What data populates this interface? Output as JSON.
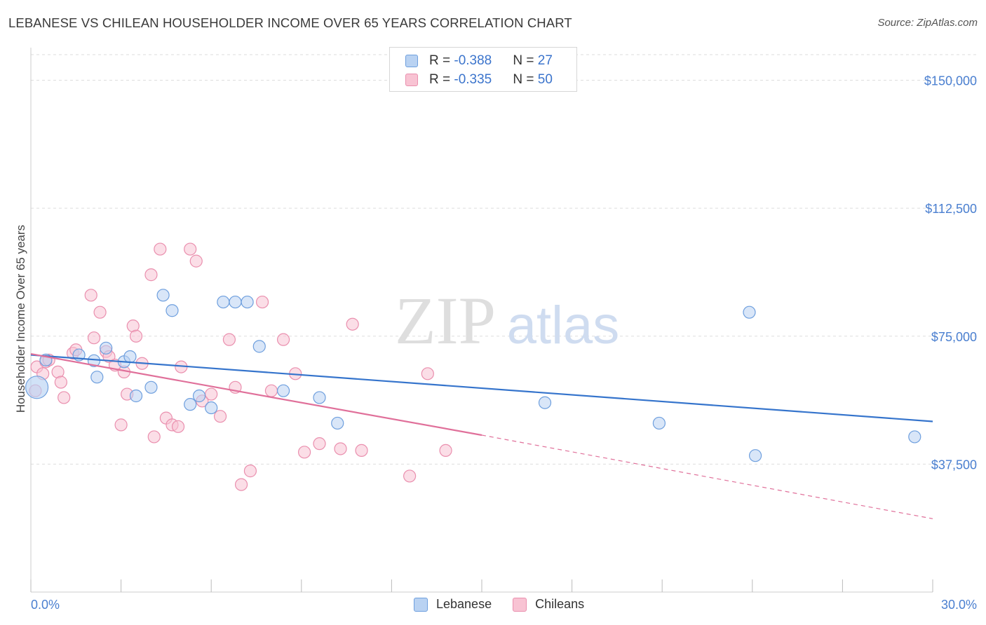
{
  "title": "LEBANESE VS CHILEAN HOUSEHOLDER INCOME OVER 65 YEARS CORRELATION CHART",
  "source": "Source: ZipAtlas.com",
  "watermark": {
    "zip": "ZIP",
    "atlas": "atlas"
  },
  "legend": {
    "lebanese": {
      "r_label": "R = ",
      "r_value": "-0.388",
      "n_label": "N = ",
      "n_value": "27"
    },
    "chileans": {
      "r_label": "R = ",
      "r_value": "-0.335",
      "n_label": "N = ",
      "n_value": "50"
    }
  },
  "bottom_legend": {
    "lebanese": "Lebanese",
    "chileans": "Chileans"
  },
  "colors": {
    "lebanese_fill": "#b9d2f2",
    "lebanese_stroke": "#6e9fde",
    "lebanese_line": "#3574cc",
    "chileans_fill": "#f8c3d3",
    "chileans_stroke": "#ea8fae",
    "chileans_line": "#e0709a",
    "tick_text": "#4a7fd0",
    "grid": "#dddddd"
  },
  "chart_data": {
    "type": "scatter",
    "title": "LEBANESE VS CHILEAN HOUSEHOLDER INCOME OVER 65 YEARS CORRELATION CHART",
    "xlabel": "",
    "ylabel": "Householder Income Over 65 years",
    "xlim": [
      0,
      30
    ],
    "ylim": [
      0,
      157500
    ],
    "x_tick_labels": [
      "0.0%",
      "30.0%"
    ],
    "y_ticks": [
      37500,
      75000,
      112500,
      150000
    ],
    "y_tick_labels": [
      "$37,500",
      "$75,000",
      "$112,500",
      "$150,000"
    ],
    "grid": "horizontal dashed",
    "legend_position": "top-center",
    "series": [
      {
        "name": "Lebanese",
        "points": [
          [
            0.2,
            60000
          ],
          [
            0.5,
            68000
          ],
          [
            1.6,
            69500
          ],
          [
            2.1,
            67800
          ],
          [
            2.2,
            63000
          ],
          [
            2.5,
            71500
          ],
          [
            3.1,
            67500
          ],
          [
            3.3,
            69000
          ],
          [
            3.5,
            57500
          ],
          [
            4.0,
            60000
          ],
          [
            4.4,
            87000
          ],
          [
            4.7,
            82500
          ],
          [
            5.3,
            55000
          ],
          [
            5.6,
            57500
          ],
          [
            6.0,
            54000
          ],
          [
            6.4,
            85000
          ],
          [
            6.8,
            85000
          ],
          [
            7.2,
            85000
          ],
          [
            7.6,
            72000
          ],
          [
            8.4,
            59000
          ],
          [
            9.6,
            57000
          ],
          [
            10.2,
            49500
          ],
          [
            17.1,
            55500
          ],
          [
            20.9,
            49500
          ],
          [
            23.9,
            82000
          ],
          [
            24.1,
            40000
          ],
          [
            29.4,
            45500
          ]
        ],
        "trend": {
          "x0": 0.0,
          "y0": 69500,
          "x1": 30.0,
          "y1": 50000
        }
      },
      {
        "name": "Chileans",
        "points": [
          [
            0.2,
            66000
          ],
          [
            0.4,
            64000
          ],
          [
            0.5,
            67500
          ],
          [
            0.6,
            68000
          ],
          [
            0.9,
            64500
          ],
          [
            1.0,
            61500
          ],
          [
            1.1,
            57000
          ],
          [
            1.4,
            70000
          ],
          [
            1.5,
            71000
          ],
          [
            2.0,
            87000
          ],
          [
            2.1,
            74500
          ],
          [
            2.3,
            82000
          ],
          [
            2.5,
            70500
          ],
          [
            2.6,
            69000
          ],
          [
            2.8,
            66500
          ],
          [
            3.0,
            49000
          ],
          [
            3.1,
            64500
          ],
          [
            3.2,
            58000
          ],
          [
            3.4,
            78000
          ],
          [
            3.5,
            75000
          ],
          [
            3.7,
            67000
          ],
          [
            4.0,
            93000
          ],
          [
            4.1,
            45500
          ],
          [
            4.3,
            100500
          ],
          [
            4.5,
            51000
          ],
          [
            4.7,
            49000
          ],
          [
            4.9,
            48500
          ],
          [
            5.0,
            66000
          ],
          [
            5.3,
            100500
          ],
          [
            5.5,
            97000
          ],
          [
            5.7,
            56000
          ],
          [
            6.0,
            58000
          ],
          [
            6.3,
            51500
          ],
          [
            6.6,
            74000
          ],
          [
            6.8,
            60000
          ],
          [
            7.0,
            31500
          ],
          [
            7.3,
            35500
          ],
          [
            7.7,
            85000
          ],
          [
            8.0,
            59000
          ],
          [
            8.4,
            74000
          ],
          [
            8.8,
            64000
          ],
          [
            9.1,
            41000
          ],
          [
            9.6,
            43500
          ],
          [
            10.3,
            42000
          ],
          [
            10.7,
            78500
          ],
          [
            11.0,
            41500
          ],
          [
            12.6,
            34000
          ],
          [
            13.2,
            64000
          ],
          [
            13.8,
            41500
          ],
          [
            0.15,
            59000
          ]
        ],
        "trend": {
          "x0": 0.0,
          "y0": 69800,
          "x1": 15.0,
          "y1": 46000
        },
        "trend_extension": {
          "x0": 15.0,
          "y0": 46000,
          "x1": 30.0,
          "y1": 21500
        }
      }
    ]
  }
}
